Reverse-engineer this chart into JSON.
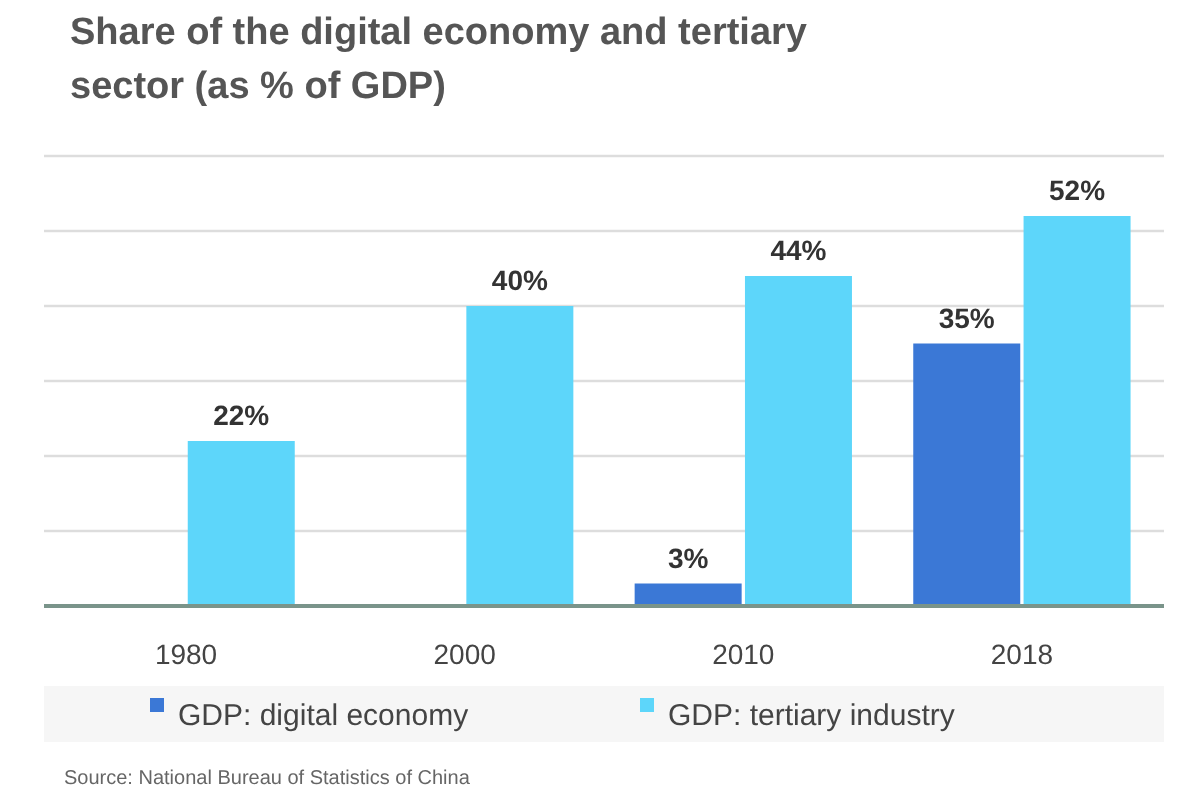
{
  "chart_data": {
    "type": "bar",
    "title": "Share of the digital economy and tertiary\nsector (as % of GDP)",
    "categories": [
      "1980",
      "2000",
      "2010",
      "2018"
    ],
    "series": [
      {
        "name": "GDP: digital economy",
        "color": "#3b78d6",
        "values": [
          null,
          null,
          3,
          35
        ],
        "value_labels": [
          null,
          null,
          "3%",
          "35%"
        ]
      },
      {
        "name": "GDP: tertiary industry",
        "color": "#5dd6fa",
        "values": [
          22,
          40,
          44,
          52
        ],
        "value_labels": [
          "22%",
          "40%",
          "44%",
          "52%"
        ]
      }
    ],
    "ylim": [
      0,
      60
    ],
    "yticks": [
      {
        "value": 0,
        "label": null
      },
      {
        "value": 10,
        "label": null
      },
      {
        "value": 20,
        "label": null
      },
      {
        "value": 30,
        "label": null
      },
      {
        "value": 40,
        "label": null
      },
      {
        "value": 50,
        "label": null
      },
      {
        "value": 60,
        "label": null
      }
    ],
    "grid": "y",
    "legend": "bottom",
    "tick_labels": "x",
    "annotations": [
      "Source: National Bureau of Statistics of China"
    ]
  }
}
